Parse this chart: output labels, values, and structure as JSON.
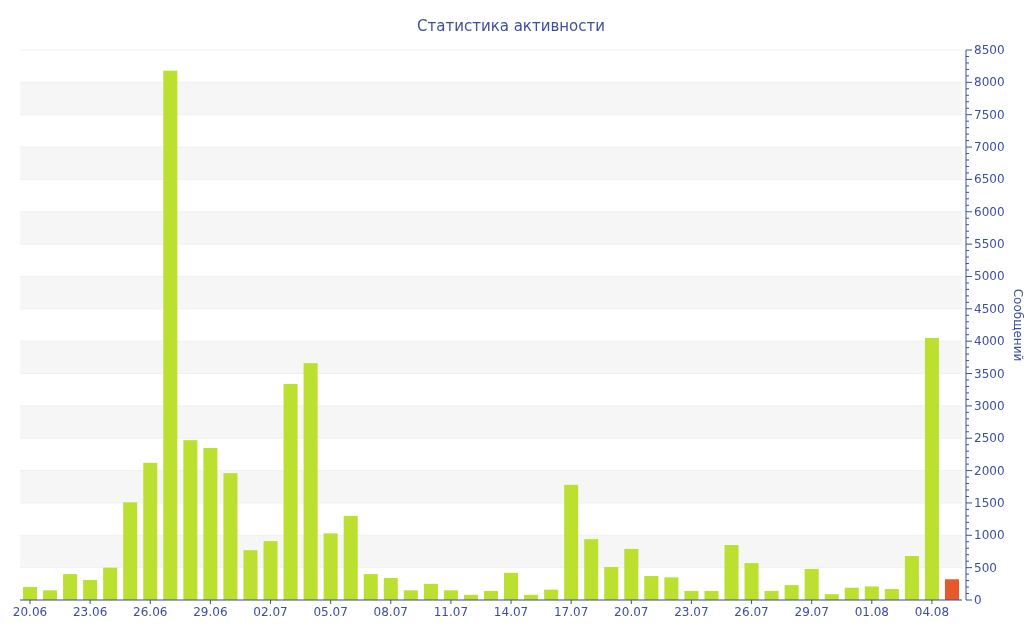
{
  "chart_data": {
    "type": "bar",
    "title": "Статистика активности",
    "ylabel": "Сообщений",
    "categories": [
      "20.06",
      null,
      null,
      "23.06",
      null,
      null,
      "26.06",
      null,
      null,
      "29.06",
      null,
      null,
      "02.07",
      null,
      null,
      "05.07",
      null,
      null,
      "08.07",
      null,
      null,
      "11.07",
      null,
      null,
      "14.07",
      null,
      null,
      "17.07",
      null,
      null,
      "20.07",
      null,
      null,
      "23.07",
      null,
      null,
      "26.07",
      null,
      null,
      "29.07",
      null,
      null,
      "01.08",
      null,
      null,
      "04.08",
      null
    ],
    "values": [
      200,
      150,
      400,
      310,
      500,
      1510,
      2120,
      8180,
      2470,
      2350,
      1960,
      770,
      910,
      3340,
      3660,
      1030,
      1300,
      400,
      340,
      150,
      250,
      150,
      80,
      140,
      420,
      80,
      160,
      1780,
      940,
      510,
      790,
      370,
      350,
      140,
      140,
      850,
      570,
      140,
      230,
      480,
      90,
      190,
      210,
      170,
      680,
      4050,
      320
    ],
    "colors": [
      "#bbe02f",
      "#bbe02f",
      "#bbe02f",
      "#bbe02f",
      "#bbe02f",
      "#bbe02f",
      "#bbe02f",
      "#bbe02f",
      "#bbe02f",
      "#bbe02f",
      "#bbe02f",
      "#bbe02f",
      "#bbe02f",
      "#bbe02f",
      "#bbe02f",
      "#bbe02f",
      "#bbe02f",
      "#bbe02f",
      "#bbe02f",
      "#bbe02f",
      "#bbe02f",
      "#bbe02f",
      "#bbe02f",
      "#bbe02f",
      "#bbe02f",
      "#bbe02f",
      "#bbe02f",
      "#bbe02f",
      "#bbe02f",
      "#bbe02f",
      "#bbe02f",
      "#bbe02f",
      "#bbe02f",
      "#bbe02f",
      "#bbe02f",
      "#bbe02f",
      "#bbe02f",
      "#bbe02f",
      "#bbe02f",
      "#bbe02f",
      "#bbe02f",
      "#bbe02f",
      "#bbe02f",
      "#bbe02f",
      "#bbe02f",
      "#bbe02f",
      "#e55a2b"
    ],
    "ylim": [
      0,
      8500
    ],
    "yticks": [
      0,
      500,
      1000,
      1500,
      2000,
      2500,
      3000,
      3500,
      4000,
      4500,
      5000,
      5500,
      6000,
      6500,
      7000,
      7500,
      8000,
      8500
    ],
    "grid": "y"
  }
}
